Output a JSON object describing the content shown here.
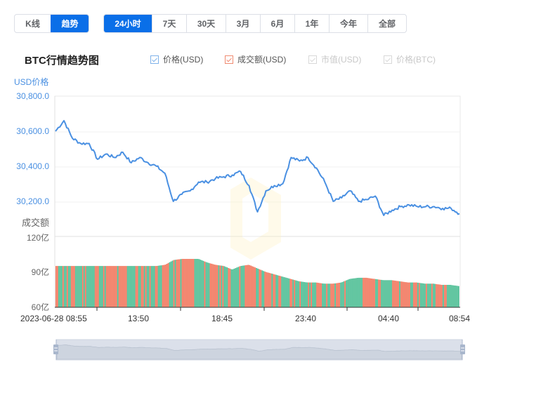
{
  "toolbar": {
    "view_tabs": [
      {
        "label": "K线",
        "active": false
      },
      {
        "label": "趋势",
        "active": true
      }
    ],
    "range_tabs": [
      {
        "label": "24小时",
        "active": true
      },
      {
        "label": "7天",
        "active": false
      },
      {
        "label": "30天",
        "active": false
      },
      {
        "label": "3月",
        "active": false
      },
      {
        "label": "6月",
        "active": false
      },
      {
        "label": "1年",
        "active": false
      },
      {
        "label": "今年",
        "active": false
      },
      {
        "label": "全部",
        "active": false
      }
    ]
  },
  "chart_title": "BTC行情趋势图",
  "legend": [
    {
      "label": "价格(USD)",
      "enabled": true,
      "color": "#4a90e2"
    },
    {
      "label": "成交额(USD)",
      "enabled": true,
      "color": "#f06a4e"
    },
    {
      "label": "市值(USD)",
      "enabled": false,
      "color": "#cccccc"
    },
    {
      "label": "价格(BTC)",
      "enabled": false,
      "color": "#cccccc"
    }
  ],
  "colors": {
    "price_line": "#4a90e2",
    "volume_up": "#3db88a",
    "volume_down": "#f06a4e",
    "accent": "#0a6fe8"
  },
  "chart_data": {
    "type": "line",
    "title": "BTC行情趋势图",
    "xlabel": "",
    "ylabel": "USD价格",
    "x_tick_labels": [
      "2023-06-28 08:55",
      "13:50",
      "18:45",
      "23:40",
      "04:40",
      "08:54"
    ],
    "price_axis": {
      "label": "USD价格",
      "ticks": [
        "30,800.0",
        "30,600.0",
        "30,400.0",
        "30,200.0"
      ],
      "ylim": [
        30000,
        30800
      ]
    },
    "volume_axis": {
      "label": "成交额",
      "ticks": [
        "120亿",
        "90亿",
        "60亿"
      ],
      "ylim": [
        60,
        120
      ],
      "unit": "亿"
    },
    "series": [
      {
        "name": "价格(USD)",
        "type": "line",
        "x": [
          "08:55",
          "09:30",
          "10:00",
          "10:30",
          "11:00",
          "11:30",
          "12:00",
          "12:30",
          "13:00",
          "13:30",
          "14:00",
          "14:30",
          "15:00",
          "15:30",
          "16:00",
          "16:30",
          "17:00",
          "17:30",
          "18:00",
          "18:30",
          "19:00",
          "19:30",
          "20:00",
          "20:30",
          "21:00",
          "21:30",
          "22:00",
          "22:30",
          "23:00",
          "23:30",
          "00:00",
          "00:30",
          "01:00",
          "01:30",
          "02:00",
          "02:30",
          "03:00",
          "03:30",
          "04:00",
          "04:30",
          "05:00",
          "05:30",
          "06:00",
          "06:30",
          "07:00",
          "07:30",
          "08:00",
          "08:30",
          "08:54"
        ],
        "values": [
          30600,
          30660,
          30560,
          30530,
          30530,
          30440,
          30470,
          30450,
          30480,
          30420,
          30450,
          30420,
          30400,
          30360,
          30200,
          30240,
          30260,
          30310,
          30310,
          30330,
          30340,
          30350,
          30370,
          30290,
          30140,
          30260,
          30290,
          30300,
          30450,
          30430,
          30450,
          30390,
          30310,
          30200,
          30220,
          30260,
          30200,
          30210,
          30230,
          30120,
          30150,
          30170,
          30180,
          30170,
          30170,
          30170,
          30160,
          30160,
          30130
        ]
      },
      {
        "name": "成交额(USD)",
        "type": "bar",
        "unit": "亿",
        "values": [
          95,
          95,
          95,
          95,
          95,
          95,
          95,
          95,
          95,
          95,
          95,
          95,
          95,
          96,
          100,
          101,
          101,
          101,
          98,
          96,
          95,
          92,
          95,
          96,
          93,
          90,
          88,
          86,
          84,
          82,
          81,
          81,
          80,
          80,
          81,
          84,
          85,
          85,
          84,
          83,
          83,
          82,
          81,
          81,
          80,
          80,
          79,
          79,
          78
        ]
      }
    ],
    "grid": true,
    "legend_position": "top",
    "data_zoom": {
      "start": "08:55",
      "end": "08:54"
    }
  },
  "axis_titles": {
    "price": "USD价格",
    "volume": "成交额"
  }
}
